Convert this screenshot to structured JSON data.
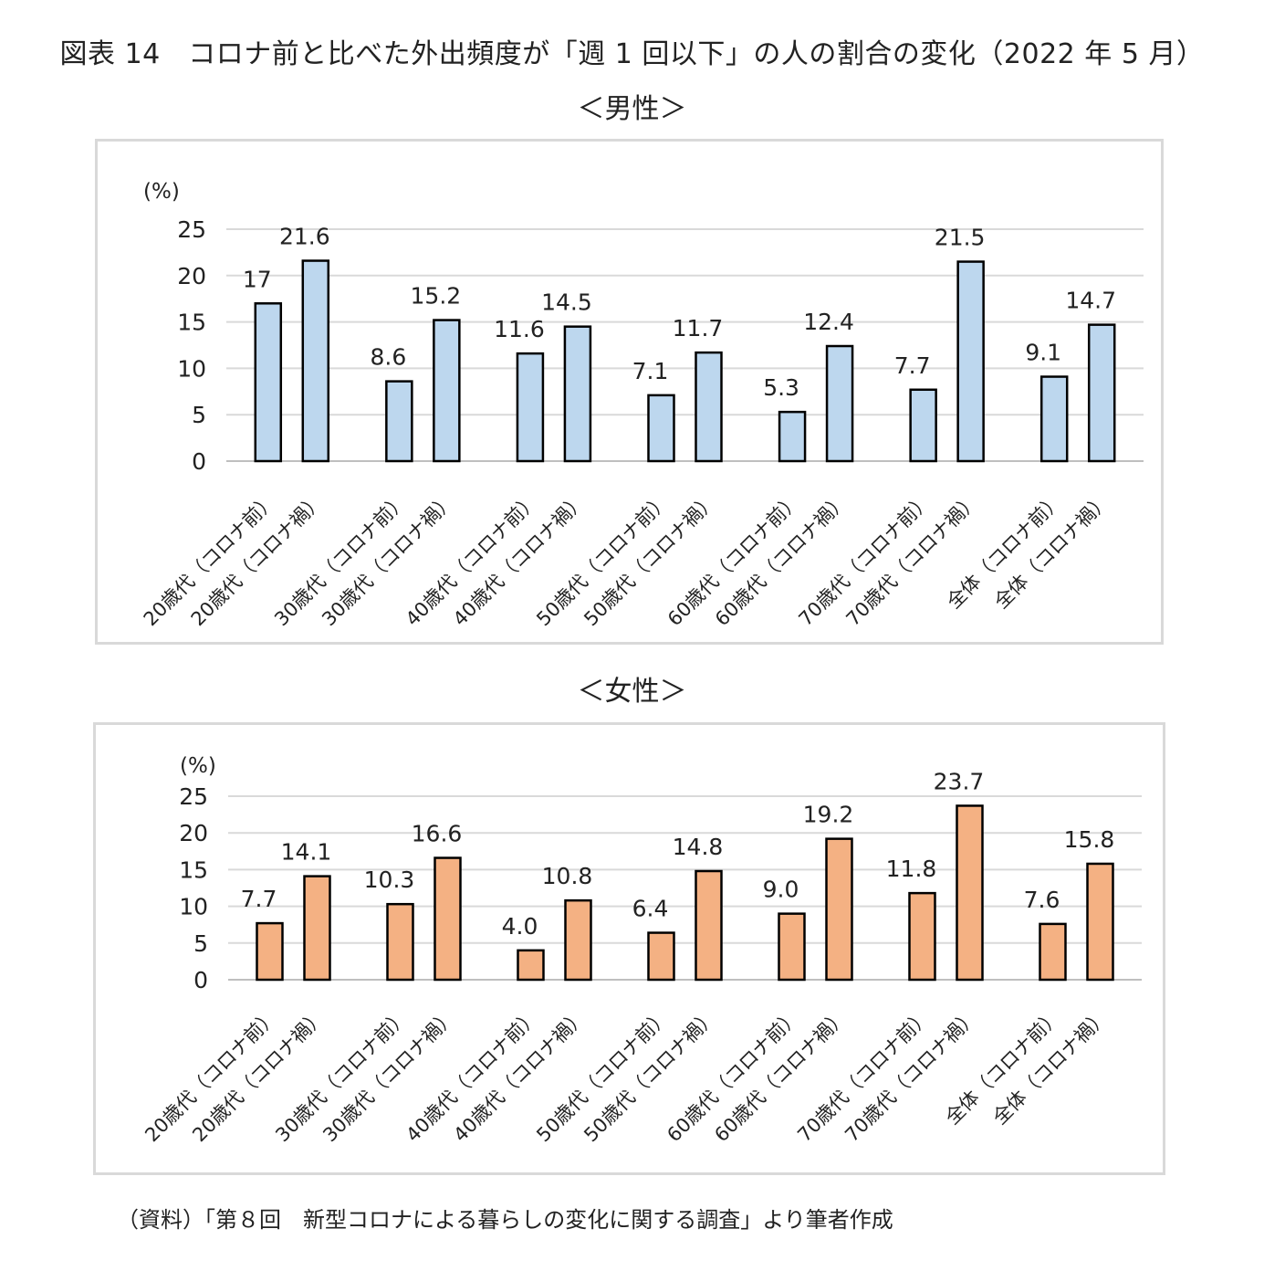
{
  "figure_title": "図表 14　コロナ前と比べた外出頻度が「週 1 回以下」の人の割合の変化（2022 年 5 月）",
  "source_note": "（資料）「第８回　新型コロナによる暮らしの変化に関する調査」より筆者作成",
  "chart_data": [
    {
      "type": "bar",
      "title": "＜男性＞",
      "ylabel": "(%)",
      "ylim": [
        0,
        25
      ],
      "yticks": [
        0,
        5,
        10,
        15,
        20,
        25
      ],
      "grid": true,
      "bar_color": "#bdd7ee",
      "categories": [
        "20歳代（コロナ前）",
        "20歳代（コロナ禍）",
        "30歳代（コロナ前）",
        "30歳代（コロナ禍）",
        "40歳代（コロナ前）",
        "40歳代（コロナ禍）",
        "50歳代（コロナ前）",
        "50歳代（コロナ禍）",
        "60歳代（コロナ前）",
        "60歳代（コロナ禍）",
        "70歳代（コロナ前）",
        "70歳代（コロナ禍）",
        "全体（コロナ前）",
        "全体（コロナ禍）"
      ],
      "values": [
        17,
        21.6,
        8.6,
        15.2,
        11.6,
        14.5,
        7.1,
        11.7,
        5.3,
        12.4,
        7.7,
        21.5,
        9.1,
        14.7
      ],
      "data_labels": [
        "17",
        "21.6",
        "8.6",
        "15.2",
        "11.6",
        "14.5",
        "7.1",
        "11.7",
        "5.3",
        "12.4",
        "7.7",
        "21.5",
        "9.1",
        "14.7"
      ]
    },
    {
      "type": "bar",
      "title": "＜女性＞",
      "ylabel": "(%)",
      "ylim": [
        0,
        25
      ],
      "yticks": [
        0,
        5,
        10,
        15,
        20,
        25
      ],
      "grid": true,
      "bar_color": "#f4b183",
      "categories": [
        "20歳代（コロナ前）",
        "20歳代（コロナ禍）",
        "30歳代（コロナ前）",
        "30歳代（コロナ禍）",
        "40歳代（コロナ前）",
        "40歳代（コロナ禍）",
        "50歳代（コロナ前）",
        "50歳代（コロナ禍）",
        "60歳代（コロナ前）",
        "60歳代（コロナ禍）",
        "70歳代（コロナ前）",
        "70歳代（コロナ禍）",
        "全体（コロナ前）",
        "全体（コロナ禍）"
      ],
      "values": [
        7.7,
        14.1,
        10.3,
        16.6,
        4.0,
        10.8,
        6.4,
        14.8,
        9.0,
        19.2,
        11.8,
        23.7,
        7.6,
        15.8
      ],
      "data_labels": [
        "7.7",
        "14.1",
        "10.3",
        "16.6",
        "4.0",
        "10.8",
        "6.4",
        "14.8",
        "9.0",
        "19.2",
        "11.8",
        "23.7",
        "7.6",
        "15.8"
      ]
    }
  ]
}
